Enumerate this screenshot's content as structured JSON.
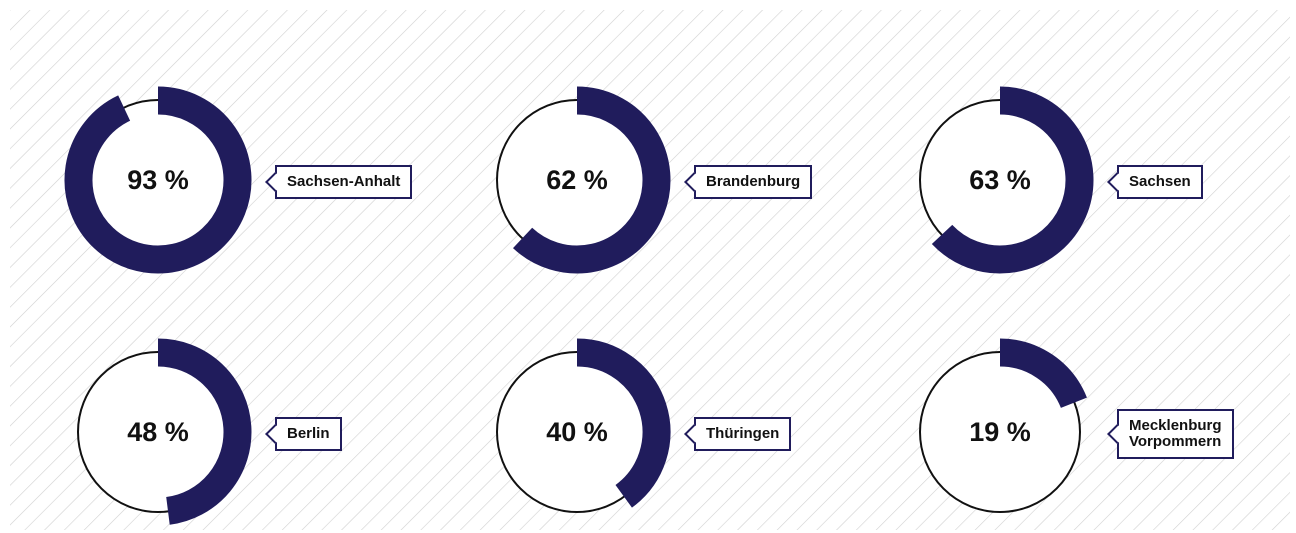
{
  "chart_data": [
    {
      "type": "donut",
      "categories": [
        "Sachsen-Anhalt"
      ],
      "values": [
        93
      ],
      "value_labels": [
        "93 %"
      ],
      "color": "#201c5c"
    },
    {
      "type": "donut",
      "categories": [
        "Brandenburg"
      ],
      "values": [
        62
      ],
      "value_labels": [
        "62 %"
      ],
      "color": "#201c5c"
    },
    {
      "type": "donut",
      "categories": [
        "Sachsen"
      ],
      "values": [
        63
      ],
      "value_labels": [
        "63 %"
      ],
      "color": "#201c5c"
    },
    {
      "type": "donut",
      "categories": [
        "Berlin"
      ],
      "values": [
        48
      ],
      "value_labels": [
        "48 %"
      ],
      "color": "#201c5c"
    },
    {
      "type": "donut",
      "categories": [
        "Thüringen"
      ],
      "values": [
        40
      ],
      "value_labels": [
        "40 %"
      ],
      "color": "#201c5c"
    },
    {
      "type": "donut",
      "categories": [
        "Mecklenburg\nVorpommern"
      ],
      "values": [
        19
      ],
      "value_labels": [
        "19 %"
      ],
      "color": "#201c5c"
    }
  ]
}
